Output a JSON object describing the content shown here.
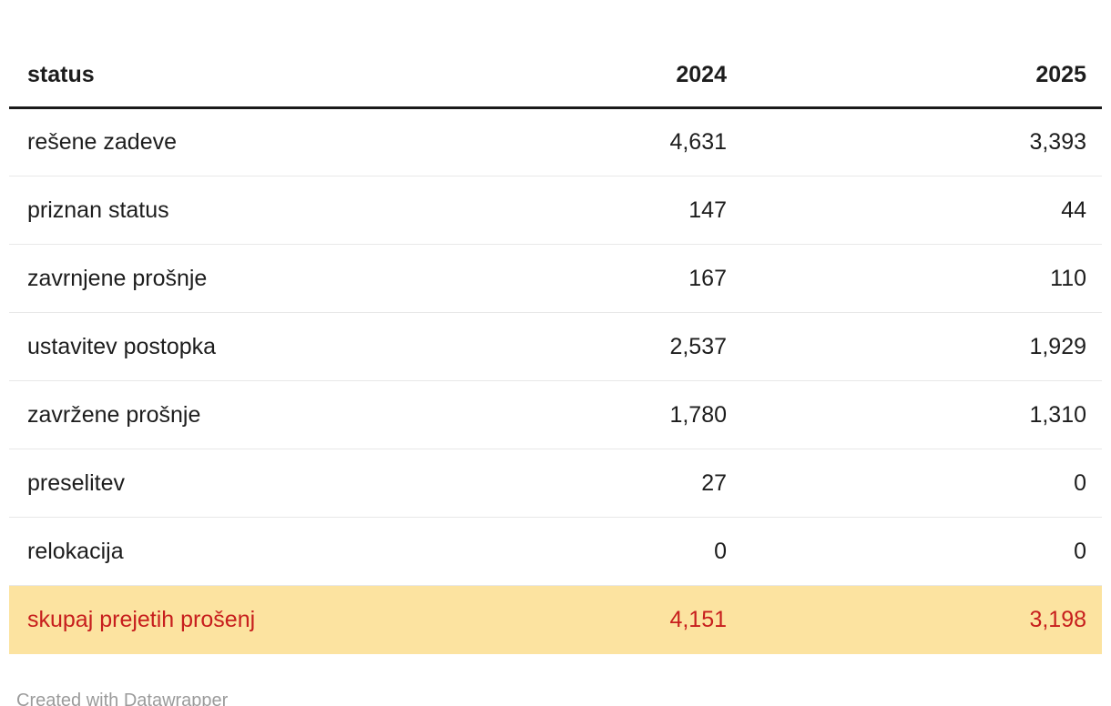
{
  "colors": {
    "text": "#1d1d1d",
    "header_rule": "#1a1a1a",
    "row_divider": "#e8e8e8",
    "highlight_bg": "#fce3a0",
    "highlight_text": "#c71e1d",
    "footer_text": "#9b9b9b"
  },
  "table": {
    "header": {
      "status": "status",
      "col2024": "2024",
      "col2025": "2025"
    },
    "rows": [
      {
        "status": "rešene zadeve",
        "y2024": "4,631",
        "y2025": "3,393",
        "highlight": false
      },
      {
        "status": "priznan status",
        "y2024": "147",
        "y2025": "44",
        "highlight": false
      },
      {
        "status": "zavrnjene prošnje",
        "y2024": "167",
        "y2025": "110",
        "highlight": false
      },
      {
        "status": "ustavitev postopka",
        "y2024": "2,537",
        "y2025": "1,929",
        "highlight": false
      },
      {
        "status": "zavržene prošnje",
        "y2024": "1,780",
        "y2025": "1,310",
        "highlight": false
      },
      {
        "status": "preselitev",
        "y2024": "27",
        "y2025": "0",
        "highlight": false
      },
      {
        "status": "relokacija",
        "y2024": "0",
        "y2025": "0",
        "highlight": false
      },
      {
        "status": "skupaj prejetih prošenj",
        "y2024": "4,151",
        "y2025": "3,198",
        "highlight": true
      }
    ]
  },
  "footer": {
    "attribution": "Created with Datawrapper"
  },
  "chart_data": {
    "type": "table",
    "columns": [
      "status",
      "2024",
      "2025"
    ],
    "rows": [
      [
        "rešene zadeve",
        4631,
        3393
      ],
      [
        "priznan status",
        147,
        44
      ],
      [
        "zavrnjene prošnje",
        167,
        110
      ],
      [
        "ustavitev postopka",
        2537,
        1929
      ],
      [
        "zavržene prošnje",
        1780,
        1310
      ],
      [
        "preselitev",
        27,
        0
      ],
      [
        "relokacija",
        0,
        0
      ],
      [
        "skupaj prejetih prošenj",
        4151,
        3198
      ]
    ],
    "highlighted_row": "skupaj prejetih prošenj",
    "highlight_style": {
      "background": "#fce3a0",
      "text_color": "#c71e1d"
    },
    "number_format": "thousands-comma",
    "grid": "horizontal-dividers",
    "legend_position": "none"
  }
}
